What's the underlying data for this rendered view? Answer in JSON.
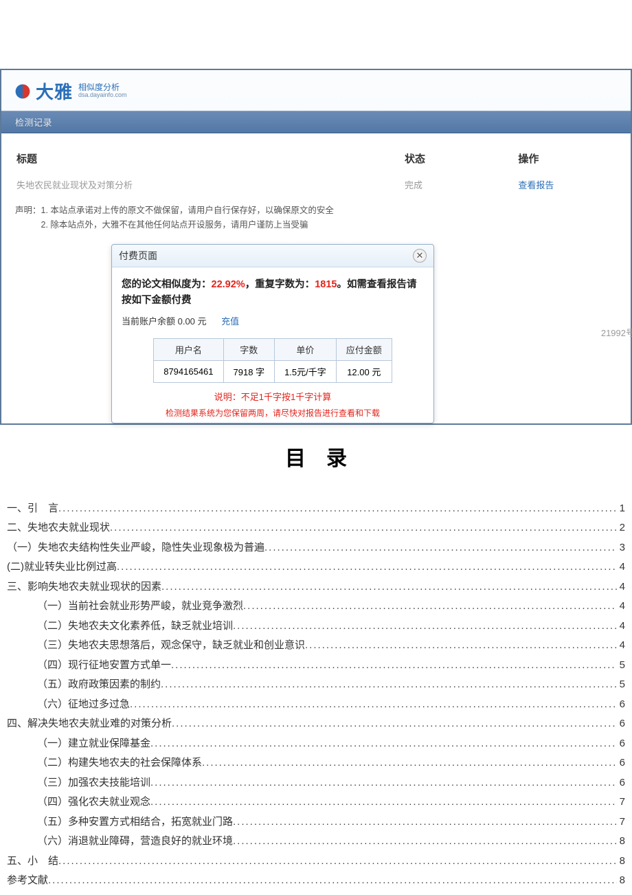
{
  "logo": {
    "brand": "大雅",
    "subtitle_cn": "相似度分析",
    "subtitle_en": "dsa.dayainfo.com"
  },
  "nav": {
    "tab": "检测记录"
  },
  "table": {
    "headers": [
      "标题",
      "状态",
      "操作"
    ],
    "row": {
      "title": "失地农民就业现状及对策分析",
      "status": "完成",
      "action": "查看报告"
    }
  },
  "disclaimer": {
    "line1": "声明：1. 本站点承诺对上传的原文不做保留，请用户自行保存好，以确保原文的安全",
    "line2": "　　　2. 除本站点外，大雅不在其他任何站点开设服务，请用户谨防上当受骗"
  },
  "side_tag": "21992号",
  "modal": {
    "title": "付费页面",
    "notice_p1": "您的论文相似度为：",
    "similarity": "22.92%",
    "notice_p2": "，重复字数为：",
    "repeat": "1815",
    "notice_p3": "。如需查看报告请按如下金额付费",
    "balance_label": "当前账户余额 0.00 元",
    "recharge": "充值",
    "price_headers": [
      "用户名",
      "字数",
      "单价",
      "应付金额"
    ],
    "price_row": [
      "8794165461",
      "7918 字",
      "1.5元/千字",
      "12.00 元"
    ],
    "note": "说明：不足1千字按1千字计算",
    "tiny": "检测结果系统为您保留两周，请尽快对报告进行查看和下载"
  },
  "doc": {
    "heading": "目录",
    "toc": [
      {
        "indent": 0,
        "label": "一、引　言",
        "page": "1"
      },
      {
        "indent": 0,
        "label": "二、失地农夫就业现状",
        "page": "2"
      },
      {
        "indent": 0,
        "label": "（一）失地农夫结构性失业严峻，隐性失业现象极为普遍",
        "page": "3"
      },
      {
        "indent": 0,
        "label": "(二)就业转失业比例过高",
        "page": "4"
      },
      {
        "indent": 0,
        "label": "三、影响失地农夫就业现状的因素",
        "page": "4"
      },
      {
        "indent": 1,
        "label": "（一）当前社会就业形势严峻，就业竞争激烈",
        "page": "4"
      },
      {
        "indent": 1,
        "label": "（二）失地农夫文化素养低，缺乏就业培训",
        "page": "4"
      },
      {
        "indent": 1,
        "label": "（三）失地农夫思想落后，观念保守，缺乏就业和创业意识",
        "page": "4"
      },
      {
        "indent": 1,
        "label": "（四）现行征地安置方式单一",
        "page": "5"
      },
      {
        "indent": 1,
        "label": "（五）政府政策因素的制约",
        "page": "5"
      },
      {
        "indent": 1,
        "label": "（六）征地过多过急",
        "page": "6"
      },
      {
        "indent": 0,
        "label": "四、解决失地农夫就业难的对策分析",
        "page": "6"
      },
      {
        "indent": 1,
        "label": "（一）建立就业保障基金",
        "page": "6"
      },
      {
        "indent": 1,
        "label": "（二）构建失地农夫的社会保障体系",
        "page": "6"
      },
      {
        "indent": 1,
        "label": "（三）加强农夫技能培训",
        "page": "6"
      },
      {
        "indent": 1,
        "label": "（四）强化农夫就业观念",
        "page": "7"
      },
      {
        "indent": 1,
        "label": "（五）多种安置方式相结合，拓宽就业门路",
        "page": "7"
      },
      {
        "indent": 1,
        "label": "（六）消退就业障碍，营造良好的就业环境",
        "page": "8"
      },
      {
        "indent": 0,
        "label": "五、小　结",
        "page": "8"
      },
      {
        "indent": 0,
        "label": "参考文献",
        "page": "8"
      }
    ]
  }
}
